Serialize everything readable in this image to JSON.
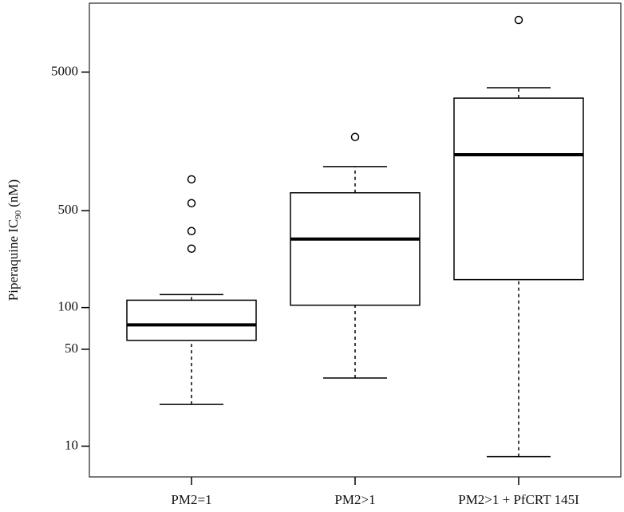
{
  "chart_data": {
    "type": "box",
    "log_scale": true,
    "y_label": {
      "text": "Piperaquine IC",
      "subscript": "90",
      "suffix": "(nM)"
    },
    "categories": [
      "PM2=1",
      "PM2>1",
      "PM2>1 + PfCRT 145I"
    ],
    "boxes": [
      {
        "whislo": 20,
        "q1": 58,
        "med": 75,
        "q3": 113,
        "whishi": 124,
        "fliers": [
          266,
          356,
          566,
          842
        ]
      },
      {
        "whislo": 31,
        "q1": 104,
        "med": 312,
        "q3": 673,
        "whishi": 1040,
        "fliers": [
          1700
        ]
      },
      {
        "whislo": 8.4,
        "q1": 159,
        "med": 1267,
        "q3": 3243,
        "whishi": 3855,
        "fliers": [
          11880
        ]
      }
    ],
    "color": "#000000",
    "ylim": [
      6,
      15700
    ],
    "yticks": [
      10,
      50,
      100,
      500,
      5000
    ]
  }
}
